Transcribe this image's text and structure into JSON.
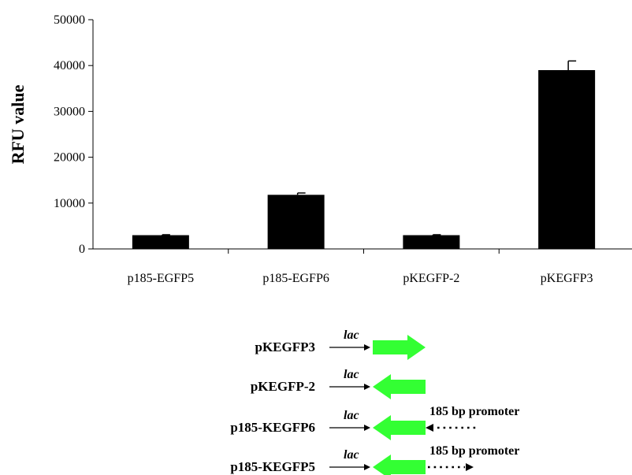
{
  "chart_data": {
    "type": "bar",
    "categories": [
      "p185-EGFP5",
      "p185-EGFP6",
      "pKEGFP-2",
      "pKEGFP3"
    ],
    "values": [
      3000,
      11800,
      3000,
      39000
    ],
    "errors": [
      100,
      400,
      100,
      2000
    ],
    "ylabel": "RFU value",
    "xlabel": "",
    "ylim": [
      0,
      50000
    ],
    "yticks": [
      0,
      10000,
      20000,
      30000,
      40000,
      50000
    ],
    "bar_color": "#000000",
    "grid": false,
    "legend": "none"
  },
  "diagram": {
    "arrow_color": "#33ff33",
    "constructs": [
      {
        "name": "pKEGFP3",
        "lac": "lac",
        "direction": "right",
        "promoter": null
      },
      {
        "name": "pKEGFP-2",
        "lac": "lac",
        "direction": "left",
        "promoter": null
      },
      {
        "name": "p185-KEGFP6",
        "lac": "lac",
        "direction": "left",
        "promoter": {
          "label": "185 bp promoter",
          "direction": "left"
        }
      },
      {
        "name": "p185-KEGFP5",
        "lac": "lac",
        "direction": "left",
        "promoter": {
          "label": "185 bp promoter",
          "direction": "right"
        }
      }
    ]
  }
}
